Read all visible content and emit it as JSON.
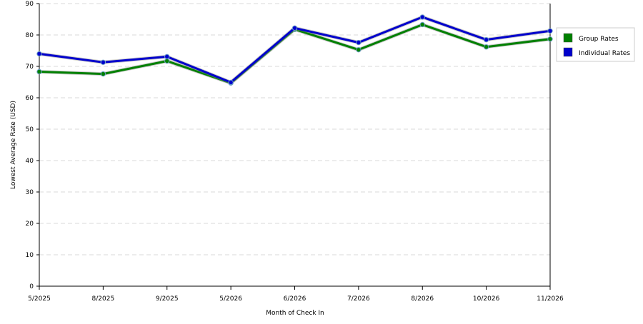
{
  "chart_data": {
    "type": "line",
    "xlabel": "Month of Check In",
    "ylabel": "Lowest Average Rate (USD)",
    "ylim": [
      0,
      90
    ],
    "yticks": [
      "0",
      "10",
      "20",
      "30",
      "40",
      "50",
      "60",
      "70",
      "80",
      "90"
    ],
    "categories": [
      "5/2025",
      "8/2025",
      "9/2025",
      "5/2026",
      "6/2026",
      "7/2026",
      "8/2026",
      "10/2026",
      "11/2026"
    ],
    "grid": "horizontal dashed",
    "legend_position": "right",
    "series": [
      {
        "name": "Group Rates",
        "color": "#008000",
        "values": [
          68.3,
          67.6,
          71.7,
          64.7,
          81.8,
          75.3,
          83.3,
          76.2,
          78.7
        ]
      },
      {
        "name": "Individual Rates",
        "color": "#0000cc",
        "values": [
          74.0,
          71.3,
          73.1,
          64.9,
          82.2,
          77.6,
          85.7,
          78.5,
          81.3
        ]
      }
    ]
  }
}
